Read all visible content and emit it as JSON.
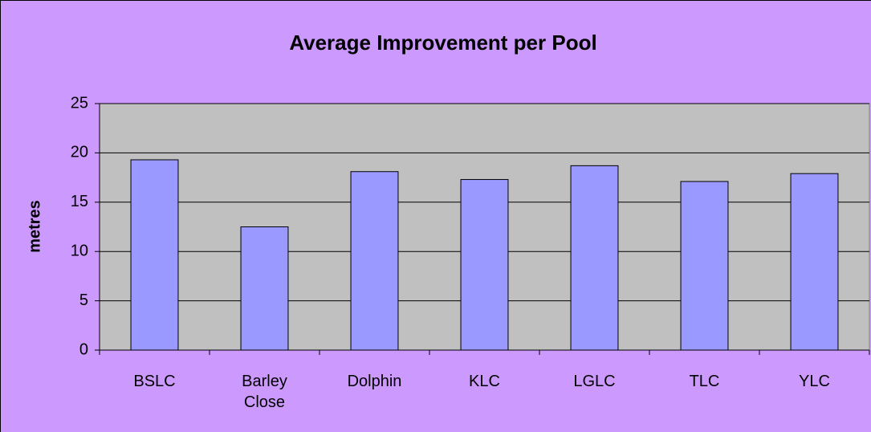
{
  "chart_data": {
    "type": "bar",
    "title": "Average Improvement per Pool",
    "y_label": "metres",
    "categories": [
      "BSLC",
      "Barley Close",
      "Dolphin",
      "KLC",
      "LGLC",
      "TLC",
      "YLC"
    ],
    "values": [
      19.3,
      12.5,
      18.1,
      17.3,
      18.7,
      17.1,
      17.9
    ],
    "color": "#9999ff",
    "ylim": [
      0,
      25
    ],
    "yticks": [
      0,
      5,
      10,
      15,
      20,
      25
    ],
    "grid": true
  }
}
